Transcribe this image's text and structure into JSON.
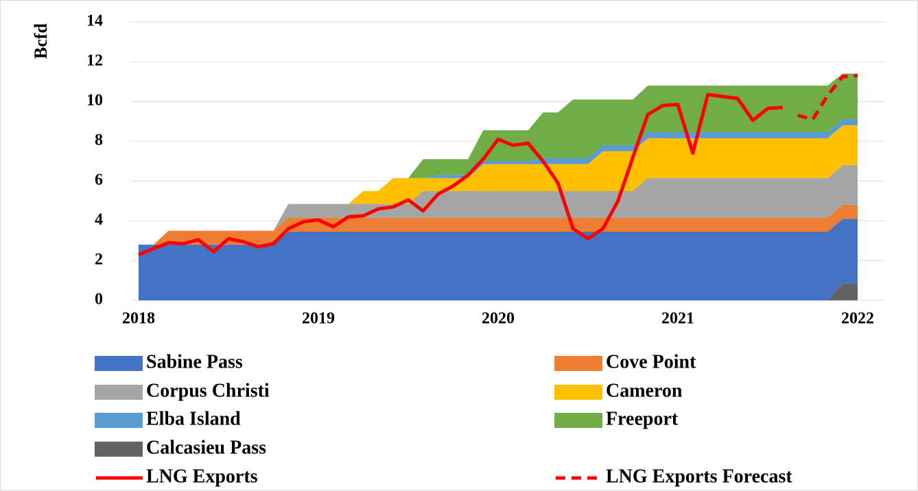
{
  "chart_data": {
    "type": "area",
    "y_label": "Bcfd",
    "x": [
      2018,
      2018.083,
      2018.167,
      2018.25,
      2018.333,
      2018.417,
      2018.5,
      2018.583,
      2018.667,
      2018.75,
      2018.833,
      2018.917,
      2019,
      2019.083,
      2019.167,
      2019.25,
      2019.333,
      2019.417,
      2019.5,
      2019.583,
      2019.667,
      2019.75,
      2019.833,
      2019.917,
      2020,
      2020.083,
      2020.167,
      2020.25,
      2020.333,
      2020.417,
      2020.5,
      2020.583,
      2020.667,
      2020.75,
      2020.833,
      2020.917,
      2021,
      2021.083,
      2021.167,
      2021.25,
      2021.333,
      2021.417,
      2021.5,
      2021.583,
      2021.667,
      2021.75,
      2021.833,
      2021.917,
      2022
    ],
    "xlim": [
      2018,
      2022
    ],
    "xticks": [
      2018,
      2019,
      2020,
      2021,
      2022
    ],
    "ylim": [
      0,
      14
    ],
    "yticks": [
      0,
      2,
      4,
      6,
      8,
      10,
      12,
      14
    ],
    "grid": true,
    "series": [
      {
        "name": "Sabine Pass",
        "type": "area",
        "color": "#4472c4",
        "values": [
          2.8,
          2.8,
          2.8,
          2.8,
          2.8,
          2.8,
          2.8,
          2.8,
          2.8,
          2.8,
          3.45,
          3.45,
          3.45,
          3.45,
          3.45,
          3.45,
          3.45,
          3.45,
          3.45,
          3.45,
          3.45,
          3.45,
          3.45,
          3.45,
          3.45,
          3.45,
          3.45,
          3.45,
          3.45,
          3.45,
          3.45,
          3.45,
          3.45,
          3.45,
          3.45,
          3.45,
          3.45,
          3.45,
          3.45,
          3.45,
          3.45,
          3.45,
          3.45,
          3.45,
          3.45,
          3.45,
          3.45,
          3.25,
          3.25
        ]
      },
      {
        "name": "Cove Point",
        "type": "area",
        "color": "#ed7d31",
        "values": [
          0,
          0,
          0.7,
          0.7,
          0.7,
          0.7,
          0.7,
          0.7,
          0.7,
          0.7,
          0.7,
          0.7,
          0.7,
          0.7,
          0.7,
          0.7,
          0.7,
          0.7,
          0.7,
          0.7,
          0.7,
          0.7,
          0.7,
          0.7,
          0.7,
          0.7,
          0.7,
          0.7,
          0.7,
          0.7,
          0.7,
          0.7,
          0.7,
          0.7,
          0.7,
          0.7,
          0.7,
          0.7,
          0.7,
          0.7,
          0.7,
          0.7,
          0.7,
          0.7,
          0.7,
          0.7,
          0.7,
          0.7,
          0.7
        ]
      },
      {
        "name": "Corpus Christi",
        "type": "area",
        "color": "#a5a5a5",
        "values": [
          0,
          0,
          0,
          0,
          0,
          0,
          0,
          0,
          0,
          0,
          0.7,
          0.7,
          0.7,
          0.7,
          0.7,
          0.7,
          0.7,
          0.7,
          0.7,
          1.35,
          1.35,
          1.35,
          1.35,
          1.35,
          1.35,
          1.35,
          1.35,
          1.35,
          1.35,
          1.35,
          1.35,
          1.35,
          1.35,
          1.35,
          2.0,
          2.0,
          2.0,
          2.0,
          2.0,
          2.0,
          2.0,
          2.0,
          2.0,
          2.0,
          2.0,
          2.0,
          2.0,
          2.0,
          2.0
        ]
      },
      {
        "name": "Cameron",
        "type": "area",
        "color": "#ffc000",
        "values": [
          0,
          0,
          0,
          0,
          0,
          0,
          0,
          0,
          0,
          0,
          0,
          0,
          0,
          0,
          0,
          0.65,
          0.65,
          1.3,
          1.3,
          0.65,
          0.65,
          0.65,
          0.65,
          1.35,
          1.35,
          1.35,
          1.35,
          1.35,
          1.35,
          1.35,
          1.35,
          2.0,
          2.0,
          2.0,
          2.0,
          2.0,
          2.0,
          2.0,
          2.0,
          2.0,
          2.0,
          2.0,
          2.0,
          2.0,
          2.0,
          2.0,
          2.0,
          2.0,
          2.0
        ]
      },
      {
        "name": "Elba Island",
        "type": "area",
        "color": "#5b9bd5",
        "values": [
          0,
          0,
          0,
          0,
          0,
          0,
          0,
          0,
          0,
          0,
          0,
          0,
          0,
          0,
          0,
          0,
          0,
          0,
          0,
          0,
          0.15,
          0.15,
          0.15,
          0.15,
          0.15,
          0.15,
          0.15,
          0.3,
          0.3,
          0.3,
          0.3,
          0.3,
          0.3,
          0.3,
          0.3,
          0.3,
          0.3,
          0.3,
          0.3,
          0.3,
          0.3,
          0.3,
          0.3,
          0.3,
          0.3,
          0.3,
          0.3,
          0.3,
          0.3
        ]
      },
      {
        "name": "Freeport",
        "type": "area",
        "color": "#70ad47",
        "values": [
          0,
          0,
          0,
          0,
          0,
          0,
          0,
          0,
          0,
          0,
          0,
          0,
          0,
          0,
          0,
          0,
          0,
          0,
          0,
          0.95,
          0.8,
          0.8,
          0.8,
          1.55,
          1.55,
          1.55,
          1.55,
          2.3,
          2.3,
          2.95,
          2.95,
          2.3,
          2.3,
          2.3,
          2.35,
          2.35,
          2.35,
          2.35,
          2.35,
          2.35,
          2.35,
          2.35,
          2.35,
          2.35,
          2.35,
          2.35,
          2.35,
          2.3,
          2.3
        ]
      },
      {
        "name": "Calcasieu Pass",
        "type": "area",
        "color": "#636363",
        "values": [
          0,
          0,
          0,
          0,
          0,
          0,
          0,
          0,
          0,
          0,
          0,
          0,
          0,
          0,
          0,
          0,
          0,
          0,
          0,
          0,
          0,
          0,
          0,
          0,
          0,
          0,
          0,
          0,
          0,
          0,
          0,
          0,
          0,
          0,
          0,
          0,
          0,
          0,
          0,
          0,
          0,
          0,
          0,
          0,
          0,
          0,
          0,
          0.85,
          0.85
        ]
      },
      {
        "name": "LNG Exports",
        "type": "line",
        "color": "#ff0000",
        "values": [
          2.3,
          2.6,
          2.9,
          2.85,
          3.05,
          2.45,
          3.1,
          2.95,
          2.7,
          2.85,
          3.6,
          3.95,
          4.05,
          3.7,
          4.2,
          4.25,
          4.6,
          4.7,
          5.05,
          4.5,
          5.35,
          5.75,
          6.3,
          7.1,
          8.1,
          7.8,
          7.9,
          7.0,
          5.9,
          3.6,
          3.1,
          3.6,
          5.0,
          7.2,
          9.35,
          9.8,
          9.85,
          7.4,
          10.35,
          10.25,
          10.15,
          9.05,
          9.65,
          9.7,
          null,
          null,
          null,
          null,
          null
        ]
      },
      {
        "name": "LNG Exports Forecast",
        "type": "line",
        "dashed": true,
        "color": "#ff0000",
        "values": [
          null,
          null,
          null,
          null,
          null,
          null,
          null,
          null,
          null,
          null,
          null,
          null,
          null,
          null,
          null,
          null,
          null,
          null,
          null,
          null,
          null,
          null,
          null,
          null,
          null,
          null,
          null,
          null,
          null,
          null,
          null,
          null,
          null,
          null,
          null,
          null,
          null,
          null,
          null,
          null,
          null,
          null,
          null,
          null,
          9.3,
          9.1,
          10.3,
          11.25,
          11.3
        ]
      }
    ]
  }
}
